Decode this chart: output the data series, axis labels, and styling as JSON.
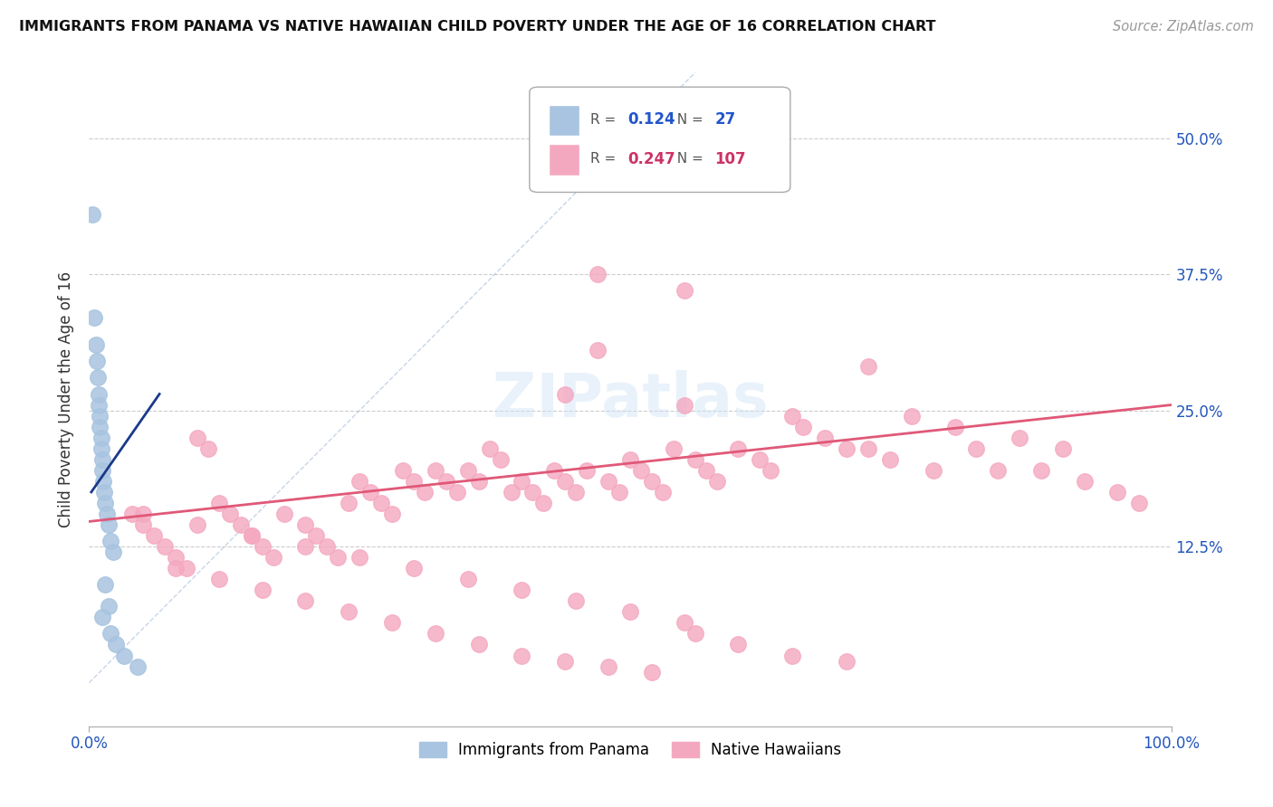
{
  "title": "IMMIGRANTS FROM PANAMA VS NATIVE HAWAIIAN CHILD POVERTY UNDER THE AGE OF 16 CORRELATION CHART",
  "source": "Source: ZipAtlas.com",
  "ylabel": "Child Poverty Under the Age of 16",
  "ytick_values": [
    0.0,
    0.125,
    0.25,
    0.375,
    0.5
  ],
  "ytick_labels": [
    "",
    "12.5%",
    "25.0%",
    "37.5%",
    "50.0%"
  ],
  "xlim": [
    0,
    1.0
  ],
  "ylim": [
    -0.04,
    0.56
  ],
  "legend_blue_R": "0.124",
  "legend_blue_N": "27",
  "legend_pink_R": "0.247",
  "legend_pink_N": "107",
  "blue_color": "#a8c4e0",
  "pink_color": "#f4a8c0",
  "blue_line_color": "#1a3a8a",
  "pink_line_color": "#e05878",
  "diag_color": "#b0c4de",
  "watermark": "ZIPatlas",
  "label_blue": "Immigrants from Panama",
  "label_pink": "Native Hawaiians",
  "blue_trend_x": [
    0.002,
    0.065
  ],
  "blue_trend_y": [
    0.175,
    0.265
  ],
  "pink_trend_x": [
    0.0,
    1.0
  ],
  "pink_trend_y": [
    0.148,
    0.255
  ]
}
